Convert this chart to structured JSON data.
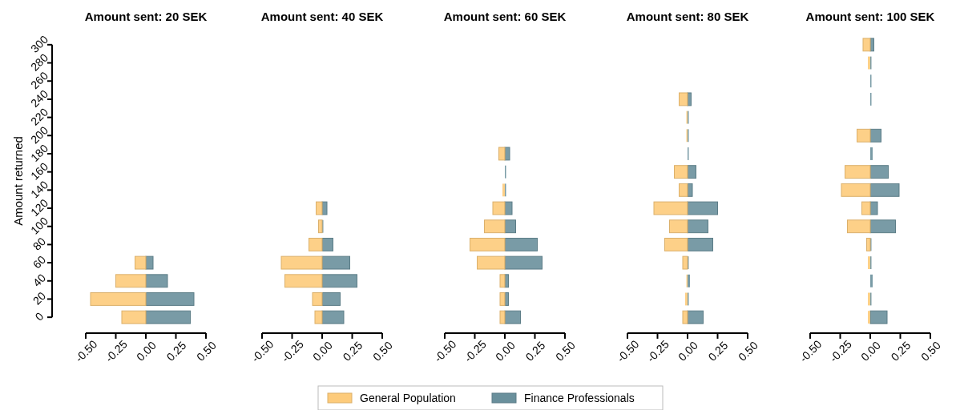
{
  "chart_data": [
    {
      "type": "bar",
      "orientation": "horizontal",
      "title": "Amount sent: 20 SEK",
      "ylabel": "Amount returned",
      "legend": "bottom",
      "categories": [
        "300",
        "280",
        "260",
        "240",
        "220",
        "200",
        "180",
        "160",
        "140",
        "120",
        "100",
        "80",
        "60",
        "40",
        "20",
        "0"
      ],
      "xlim": [
        -0.5,
        0.5
      ],
      "xticks": [
        {
          "value": -0.5,
          "label": "-0.50"
        },
        {
          "value": -0.25,
          "label": "-0.25"
        },
        {
          "value": 0,
          "label": "0.00"
        },
        {
          "value": 0.25,
          "label": "0.25"
        },
        {
          "value": 0.5,
          "label": "0.50"
        }
      ],
      "series": [
        {
          "name": "General Population",
          "color": "#fdcb7b",
          "values": [
            null,
            null,
            null,
            null,
            null,
            null,
            null,
            null,
            null,
            null,
            null,
            null,
            -0.09,
            -0.25,
            -0.46,
            -0.2
          ]
        },
        {
          "name": "Finance Professionals",
          "color": "#6a909c",
          "values": [
            null,
            null,
            null,
            null,
            null,
            null,
            null,
            null,
            null,
            null,
            null,
            null,
            0.06,
            0.18,
            0.4,
            0.37
          ]
        }
      ]
    },
    {
      "type": "bar",
      "orientation": "horizontal",
      "title": "Amount sent: 40 SEK",
      "tick_labels": "x",
      "categories": [
        "300",
        "280",
        "260",
        "240",
        "220",
        "200",
        "180",
        "160",
        "140",
        "120",
        "100",
        "80",
        "60",
        "40",
        "20",
        "0"
      ],
      "xlim": [
        -0.5,
        0.5
      ],
      "xticks": [
        {
          "value": -0.5,
          "label": "-0.50"
        },
        {
          "value": -0.25,
          "label": "-0.25"
        },
        {
          "value": 0,
          "label": "0.00"
        },
        {
          "value": 0.25,
          "label": "0.25"
        },
        {
          "value": 0.5,
          "label": "0.50"
        }
      ],
      "series": [
        {
          "color": "#fdcb7b",
          "values": [
            null,
            null,
            null,
            null,
            null,
            null,
            null,
            null,
            null,
            -0.05,
            -0.03,
            -0.11,
            -0.34,
            -0.31,
            -0.08,
            -0.06
          ]
        },
        {
          "color": "#6a909c",
          "values": [
            null,
            null,
            null,
            null,
            null,
            null,
            null,
            null,
            null,
            0.04,
            0.01,
            0.09,
            0.23,
            0.29,
            0.15,
            0.18
          ]
        }
      ]
    },
    {
      "type": "bar",
      "orientation": "horizontal",
      "title": "Amount sent: 60 SEK",
      "tick_labels": "x",
      "categories": [
        "300",
        "280",
        "260",
        "240",
        "220",
        "200",
        "180",
        "160",
        "140",
        "120",
        "100",
        "80",
        "60",
        "40",
        "20",
        "0"
      ],
      "xlim": [
        -0.5,
        0.5
      ],
      "xticks": [
        {
          "value": -0.5,
          "label": "-0.50"
        },
        {
          "value": -0.25,
          "label": "-0.25"
        },
        {
          "value": 0,
          "label": "0.00"
        },
        {
          "value": 0.25,
          "label": "0.25"
        },
        {
          "value": 0.5,
          "label": "0.50"
        }
      ],
      "series": [
        {
          "color": "#fdcb7b",
          "values": [
            null,
            null,
            null,
            null,
            null,
            null,
            -0.05,
            null,
            -0.02,
            -0.1,
            -0.17,
            -0.29,
            -0.23,
            -0.04,
            -0.04,
            -0.04
          ]
        },
        {
          "color": "#6a909c",
          "values": [
            null,
            null,
            null,
            null,
            null,
            null,
            0.04,
            0.01,
            0.01,
            0.06,
            0.09,
            0.27,
            0.31,
            0.03,
            0.03,
            0.13
          ]
        }
      ]
    },
    {
      "type": "bar",
      "orientation": "horizontal",
      "title": "Amount sent: 80 SEK",
      "tick_labels": "x",
      "categories": [
        "300",
        "280",
        "260",
        "240",
        "220",
        "200",
        "180",
        "160",
        "140",
        "120",
        "100",
        "80",
        "60",
        "40",
        "20",
        "0"
      ],
      "xlim": [
        -0.5,
        0.5
      ],
      "xticks": [
        {
          "value": -0.5,
          "label": "-0.50"
        },
        {
          "value": -0.25,
          "label": "-0.25"
        },
        {
          "value": 0,
          "label": "0.00"
        },
        {
          "value": 0.25,
          "label": "0.25"
        },
        {
          "value": 0.5,
          "label": "0.50"
        }
      ],
      "series": [
        {
          "color": "#fdcb7b",
          "values": [
            null,
            null,
            null,
            -0.07,
            -0.01,
            -0.01,
            null,
            -0.11,
            -0.07,
            -0.28,
            -0.15,
            -0.19,
            -0.04,
            -0.01,
            -0.02,
            -0.04
          ]
        },
        {
          "color": "#6a909c",
          "values": [
            null,
            null,
            null,
            0.03,
            0.01,
            0.01,
            0.01,
            0.07,
            0.04,
            0.25,
            0.17,
            0.21,
            0.01,
            0.02,
            0.01,
            0.13
          ]
        }
      ]
    },
    {
      "type": "bar",
      "orientation": "horizontal",
      "title": "Amount sent: 100 SEK",
      "tick_labels": "x",
      "categories": [
        "300",
        "280",
        "260",
        "240",
        "220",
        "200",
        "180",
        "160",
        "140",
        "120",
        "100",
        "80",
        "60",
        "40",
        "20",
        "0"
      ],
      "xlim": [
        -0.5,
        0.5
      ],
      "xticks": [
        {
          "value": -0.5,
          "label": "-0.50"
        },
        {
          "value": -0.25,
          "label": "-0.25"
        },
        {
          "value": 0,
          "label": "0.00"
        },
        {
          "value": 0.25,
          "label": "0.25"
        },
        {
          "value": 0.5,
          "label": "0.50"
        }
      ],
      "series": [
        {
          "color": "#fdcb7b",
          "values": [
            -0.06,
            -0.02,
            null,
            null,
            null,
            -0.11,
            null,
            -0.21,
            -0.24,
            -0.07,
            -0.19,
            -0.03,
            -0.02,
            null,
            -0.02,
            -0.02
          ]
        },
        {
          "color": "#6a909c",
          "values": [
            0.03,
            0.01,
            0.01,
            0.01,
            null,
            0.09,
            0.02,
            0.15,
            0.24,
            0.06,
            0.21,
            0.01,
            0.01,
            0.02,
            0.01,
            0.14
          ]
        }
      ]
    }
  ]
}
